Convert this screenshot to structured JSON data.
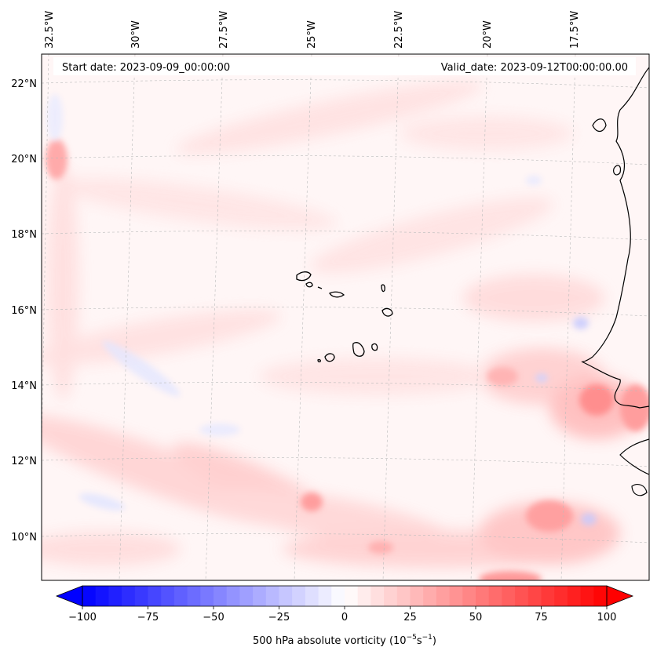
{
  "map": {
    "start_label": "Start date: 2023-09-09_00:00:00",
    "valid_label": "Valid_date: 2023-09-12T00:00:00.00",
    "lon_labels": [
      "32.5°W",
      "30°W",
      "27.5°W",
      "25°W",
      "22.5°W",
      "20°W",
      "17.5°W"
    ],
    "lat_labels": [
      "22°N",
      "20°N",
      "18°N",
      "16°N",
      "14°N",
      "12°N",
      "10°N"
    ],
    "gridlines": true,
    "colors": {
      "coast": "#000000",
      "grid": "#bbbbbb",
      "positive": "#ff0000",
      "negative": "#0000ff"
    }
  },
  "colorbar": {
    "label": "500 hPa absolute vorticity",
    "unit_prefix": "(10",
    "unit_exp1": "−5",
    "unit_mid": "s",
    "unit_exp2": "−1",
    "unit_suffix": ")",
    "ticks": [
      "−100",
      "−75",
      "−50",
      "−25",
      "0",
      "25",
      "50",
      "75",
      "100"
    ],
    "range": [
      -100,
      100
    ],
    "cmap": "bwr",
    "extend": "both"
  }
}
